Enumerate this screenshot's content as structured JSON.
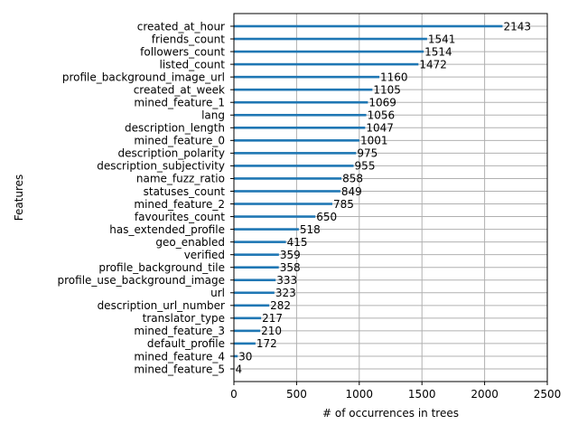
{
  "chart_data": {
    "type": "bar",
    "orientation": "horizontal",
    "title": "",
    "xlabel": "# of occurrences in trees",
    "ylabel": "Features",
    "xlim": [
      0,
      2500
    ],
    "xticks": [
      0,
      500,
      1000,
      1500,
      2000,
      2500
    ],
    "grid": true,
    "bar_color": "#1f77b4",
    "categories": [
      "created_at_hour",
      "friends_count",
      "followers_count",
      "listed_count",
      "profile_background_image_url",
      "created_at_week",
      "mined_feature_1",
      "lang",
      "description_length",
      "mined_feature_0",
      "description_polarity",
      "description_subjectivity",
      "name_fuzz_ratio",
      "statuses_count",
      "mined_feature_2",
      "favourites_count",
      "has_extended_profile",
      "geo_enabled",
      "verified",
      "profile_background_tile",
      "profile_use_background_image",
      "url",
      "description_url_number",
      "translator_type",
      "mined_feature_3",
      "default_profile",
      "mined_feature_4",
      "mined_feature_5"
    ],
    "values": [
      2143,
      1541,
      1514,
      1472,
      1160,
      1105,
      1069,
      1056,
      1047,
      1001,
      975,
      955,
      858,
      849,
      785,
      650,
      518,
      415,
      359,
      358,
      333,
      323,
      282,
      217,
      210,
      172,
      30,
      4
    ]
  }
}
